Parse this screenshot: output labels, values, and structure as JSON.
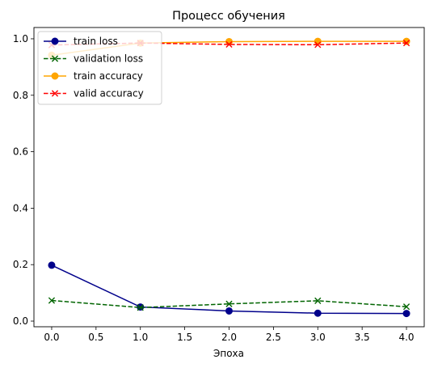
{
  "chart_data": {
    "type": "line",
    "title": "Процесс обучения",
    "xlabel": "Эпоха",
    "ylabel": "",
    "x": [
      0,
      1,
      2,
      3,
      4
    ],
    "xlim": [
      -0.2,
      4.2
    ],
    "ylim": [
      -0.02,
      1.04
    ],
    "xticks": [
      "0.0",
      "0.5",
      "1.0",
      "1.5",
      "2.0",
      "2.5",
      "3.0",
      "3.5",
      "4.0"
    ],
    "yticks": [
      "0.0",
      "0.2",
      "0.4",
      "0.6",
      "0.8",
      "1.0"
    ],
    "grid": false,
    "legend_position": "top-left",
    "series": [
      {
        "name": "train loss",
        "values": [
          0.198,
          0.05,
          0.036,
          0.028,
          0.027
        ],
        "color": "#00008b",
        "linestyle": "solid",
        "marker": "circle"
      },
      {
        "name": "validation loss",
        "values": [
          0.073,
          0.048,
          0.061,
          0.072,
          0.051
        ],
        "color": "#006400",
        "linestyle": "dashed",
        "marker": "x"
      },
      {
        "name": "train accuracy",
        "values": [
          0.942,
          0.985,
          0.99,
          0.991,
          0.991
        ],
        "color": "#ffa500",
        "linestyle": "solid",
        "marker": "circle"
      },
      {
        "name": "valid accuracy",
        "values": [
          0.978,
          0.985,
          0.98,
          0.979,
          0.985
        ],
        "color": "#ff0000",
        "linestyle": "dashed",
        "marker": "x"
      }
    ]
  }
}
